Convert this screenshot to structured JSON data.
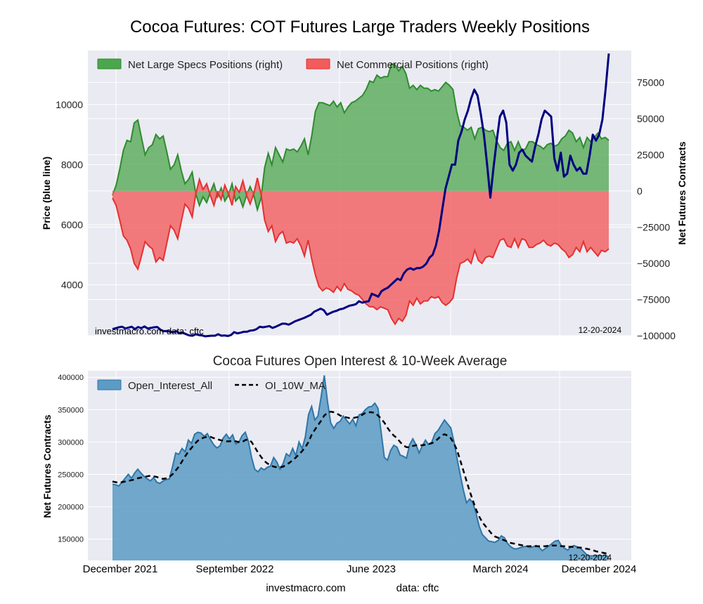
{
  "figure": {
    "title": "Cocoa Futures: COT Futures Large Traders Weekly Positions",
    "footer_site": "investmacro.com",
    "footer_data": "data: cftc"
  },
  "colors": {
    "plot_bg": "#eaeaf2",
    "grid": "#ffffff",
    "price_line": "#000080",
    "specs_fill": "#4ca64c",
    "specs_line": "#2e8b2e",
    "comm_fill": "#f25c5c",
    "comm_line": "#e53030",
    "oi_fill": "#5b9bc4",
    "oi_line": "#2e76a8",
    "ma_line": "#000000"
  },
  "chart_data": [
    {
      "type": "line",
      "id": "positions",
      "title": "",
      "ylabel": "Price (blue line)",
      "y2label": "Net Futures Contracts",
      "ylim": [
        2300,
        11800
      ],
      "y2lim": [
        -100000,
        97000
      ],
      "yticks": [
        4000,
        6000,
        8000,
        10000
      ],
      "y2ticks": [
        -100000,
        -75000,
        -50000,
        -25000,
        0,
        25000,
        50000,
        75000
      ],
      "ytick_labels": [
        "4000",
        "6000",
        "8000",
        "10000"
      ],
      "y2tick_labels": [
        "−100000",
        "−75000",
        "−50000",
        "−25000",
        "0",
        "25000",
        "50000",
        "75000"
      ],
      "legend": [
        "Net Large Specs Positions (right)",
        "Net Commercial Positions (right)"
      ],
      "legend_position": "top-left",
      "source_left": "investmacro.com     data: cftc",
      "date_label": "12-20-2024",
      "start_date": "2021-12-03",
      "series": [
        {
          "name": "Net Large Specs Positions (right)",
          "axis": "right",
          "style": "area",
          "values": [
            -3000,
            4000,
            15000,
            28000,
            35000,
            34000,
            47000,
            49000,
            37000,
            25000,
            30000,
            32000,
            39000,
            36000,
            38000,
            27000,
            15000,
            18000,
            25000,
            14000,
            5000,
            8000,
            13000,
            -2000,
            -10000,
            -4000,
            -8000,
            -1000,
            5000,
            -4000,
            2000,
            -7000,
            -3000,
            5000,
            -7000,
            -4000,
            -11000,
            -3000,
            3000,
            -3000,
            -13000,
            -5000,
            16000,
            26000,
            18000,
            30000,
            25000,
            20000,
            29000,
            28000,
            29000,
            27000,
            31000,
            36000,
            25000,
            38000,
            55000,
            61000,
            61000,
            60000,
            59000,
            62000,
            58000,
            61000,
            54000,
            58000,
            61000,
            62000,
            64000,
            66000,
            70000,
            76000,
            75000,
            80000,
            78000,
            79000,
            79000,
            88000,
            87000,
            83000,
            86000,
            81000,
            71000,
            73000,
            70000,
            73000,
            71000,
            71000,
            69000,
            70000,
            69000,
            72000,
            75000,
            73000,
            70000,
            55000,
            45000,
            44000,
            42000,
            44000,
            36000,
            43000,
            44000,
            42000,
            41000,
            42000,
            35000,
            30000,
            28000,
            33000,
            34000,
            28000,
            34000,
            28000,
            29000,
            34000,
            34000,
            32000,
            31000,
            29000,
            32000,
            33000,
            31000,
            32000,
            36000,
            38000,
            42000,
            40000,
            34000,
            37000,
            30000,
            37000,
            34000,
            37000,
            40000,
            36000,
            37000,
            35000
          ]
        },
        {
          "name": "Net Commercial Positions (right)",
          "axis": "right",
          "style": "area",
          "values": [
            -5000,
            -10000,
            -20000,
            -31000,
            -34000,
            -40000,
            -50000,
            -54000,
            -45000,
            -35000,
            -38000,
            -40000,
            -49000,
            -46000,
            -48000,
            -36000,
            -24000,
            -27000,
            -33000,
            -21000,
            -9000,
            -12000,
            -18000,
            -2000,
            8000,
            1000,
            5000,
            -3000,
            -10000,
            -1000,
            -6000,
            4000,
            -2000,
            -10000,
            3000,
            -1000,
            7000,
            -3000,
            -9000,
            -2000,
            9000,
            -2000,
            -20000,
            -28000,
            -24000,
            -35000,
            -30000,
            -28000,
            -36000,
            -35000,
            -36000,
            -33000,
            -38000,
            -45000,
            -34000,
            -47000,
            -58000,
            -66000,
            -69000,
            -67000,
            -68000,
            -70000,
            -66000,
            -69000,
            -64000,
            -68000,
            -69000,
            -71000,
            -72000,
            -75000,
            -78000,
            -80000,
            -80000,
            -82000,
            -80000,
            -81000,
            -82000,
            -88000,
            -92000,
            -88000,
            -90000,
            -86000,
            -76000,
            -79000,
            -74000,
            -78000,
            -76000,
            -76000,
            -73000,
            -74000,
            -73000,
            -77000,
            -79000,
            -77000,
            -74000,
            -60000,
            -50000,
            -49000,
            -47000,
            -50000,
            -41000,
            -48000,
            -50000,
            -46000,
            -45000,
            -46000,
            -40000,
            -34000,
            -33000,
            -38000,
            -39000,
            -33000,
            -39000,
            -33000,
            -34000,
            -39000,
            -39000,
            -37000,
            -36000,
            -34000,
            -37000,
            -38000,
            -36000,
            -37000,
            -40000,
            -42000,
            -46000,
            -44000,
            -39000,
            -42000,
            -35000,
            -42000,
            -39000,
            -42000,
            -45000,
            -41000,
            -42000,
            -40000
          ]
        },
        {
          "name": "",
          "axis": "left",
          "style": "line",
          "values": [
            2520,
            2550,
            2580,
            2600,
            2540,
            2570,
            2600,
            2520,
            2590,
            2550,
            2610,
            2540,
            2560,
            2580,
            2590,
            2500,
            2450,
            2460,
            2430,
            2420,
            2450,
            2380,
            2400,
            2350,
            2310,
            2300,
            2350,
            2320,
            2310,
            2280,
            2290,
            2300,
            2300,
            2350,
            2300,
            2310,
            2290,
            2320,
            2420,
            2380,
            2400,
            2430,
            2430,
            2470,
            2480,
            2520,
            2600,
            2580,
            2600,
            2620,
            2560,
            2600,
            2650,
            2700,
            2700,
            2670,
            2720,
            2780,
            2820,
            2860,
            2900,
            2950,
            3000,
            3100,
            3150,
            3200,
            3150,
            3000,
            3050,
            3100,
            3130,
            3180,
            3200,
            3250,
            3300,
            3320,
            3350,
            3450,
            3400,
            3430,
            3450,
            3700,
            3650,
            3600,
            3780,
            3850,
            3900,
            4000,
            4100,
            4200,
            4150,
            4380,
            4500,
            4550,
            4500,
            4550,
            4550,
            4600,
            4700,
            4900,
            5000,
            5300,
            5800,
            6500,
            7200,
            7600,
            8000,
            8000,
            8800,
            9100,
            9500,
            9800,
            10200,
            10500,
            10300,
            9700,
            9000,
            8000,
            6900,
            7900,
            8800,
            9600,
            9800,
            9400,
            8000,
            7800,
            8000,
            8400,
            8500,
            8300,
            8200,
            8100,
            8600,
            9000,
            9500,
            9800,
            9700,
            9600,
            8200,
            7800,
            8400,
            7600,
            7700,
            8300,
            8000,
            7800,
            7900,
            7700,
            7700,
            8300,
            9000,
            8800,
            9000,
            9500,
            10500,
            11700
          ]
        }
      ]
    },
    {
      "type": "area",
      "id": "open_interest",
      "title": "Cocoa Futures Open Interest & 10-Week Average",
      "ylabel": "Net Futures Contracts",
      "ylim": [
        117000,
        410000
      ],
      "yticks": [
        150000,
        200000,
        250000,
        300000,
        350000,
        400000
      ],
      "ytick_labels": [
        "150000",
        "200000",
        "250000",
        "300000",
        "350000",
        "400000"
      ],
      "legend": [
        "Open_Interest_All",
        "OI_10W_MA"
      ],
      "legend_position": "top-left",
      "date_label": "12-20-2024",
      "x_tick_labels": [
        "December 2021",
        "September 2022",
        "June 2023",
        "March 2024",
        "December 2024"
      ],
      "start_date": "2021-12-03",
      "series": [
        {
          "name": "Open_Interest_All",
          "style": "area",
          "values": [
            235000,
            234000,
            232000,
            238000,
            244000,
            250000,
            244000,
            252000,
            258000,
            252000,
            247000,
            243000,
            240000,
            245000,
            238000,
            236000,
            240000,
            242000,
            243000,
            262000,
            283000,
            281000,
            290000,
            285000,
            303000,
            298000,
            312000,
            315000,
            314000,
            309000,
            313000,
            304000,
            296000,
            291000,
            294000,
            306000,
            312000,
            305000,
            311000,
            297000,
            300000,
            310000,
            315000,
            301000,
            276000,
            258000,
            254000,
            260000,
            257000,
            261000,
            263000,
            276000,
            269000,
            258000,
            267000,
            282000,
            278000,
            290000,
            279000,
            300000,
            290000,
            308000,
            342000,
            355000,
            334000,
            340000,
            370000,
            403000,
            363000,
            330000,
            321000,
            329000,
            332000,
            340000,
            334000,
            328000,
            335000,
            325000,
            342000,
            344000,
            350000,
            354000,
            355000,
            360000,
            352000,
            315000,
            276000,
            272000,
            287000,
            295000,
            292000,
            280000,
            278000,
            275000,
            296000,
            305000,
            296000,
            283000,
            294000,
            303000,
            296000,
            300000,
            313000,
            318000,
            326000,
            334000,
            328000,
            322000,
            301000,
            274000,
            250000,
            226000,
            206000,
            212000,
            206000,
            190000,
            170000,
            157000,
            152000,
            147000,
            146000,
            145000,
            148000,
            155000,
            152000,
            143000,
            138000,
            135000,
            135000,
            137000,
            138000,
            139000,
            137000,
            138000,
            140000,
            137000,
            132000,
            136000,
            139000,
            143000,
            147000,
            148000,
            140000,
            136000,
            133000,
            138000,
            140000,
            138000,
            136000,
            131000,
            126000,
            124000,
            124000,
            124000,
            125000,
            124000,
            125000,
            122000
          ]
        },
        {
          "name": "OI_10W_MA",
          "style": "dashed-line",
          "values": [
            239000,
            238000,
            237000,
            238000,
            239000,
            240000,
            241000,
            242000,
            244000,
            245000,
            246000,
            247000,
            248000,
            247000,
            246000,
            244000,
            243000,
            244000,
            246000,
            250000,
            256000,
            262000,
            270000,
            278000,
            285000,
            291000,
            297000,
            302000,
            305000,
            307000,
            308000,
            308000,
            306000,
            305000,
            303000,
            302000,
            301000,
            301000,
            302000,
            301000,
            300000,
            300000,
            303000,
            304000,
            300000,
            292000,
            284000,
            277000,
            271000,
            267000,
            264000,
            262000,
            261000,
            261000,
            262000,
            265000,
            268000,
            272000,
            276000,
            281000,
            286000,
            292000,
            300000,
            311000,
            319000,
            326000,
            333000,
            341000,
            345000,
            347000,
            346000,
            344000,
            341000,
            339000,
            338000,
            337000,
            337000,
            338000,
            339000,
            342000,
            345000,
            346000,
            346000,
            345000,
            341000,
            336000,
            330000,
            322000,
            315000,
            310000,
            306000,
            300000,
            295000,
            292000,
            292000,
            294000,
            295000,
            295000,
            295000,
            296000,
            297000,
            298000,
            301000,
            305000,
            310000,
            312000,
            310000,
            306000,
            298000,
            287000,
            272000,
            256000,
            240000,
            224000,
            210000,
            196000,
            185000,
            176000,
            170000,
            164000,
            158000,
            154000,
            152000,
            150000,
            148000,
            146000,
            144000,
            143000,
            142000,
            141000,
            140000,
            139000,
            139000,
            139000,
            139000,
            139000,
            139000,
            139000,
            140000,
            140000,
            140000,
            140000,
            139000,
            139000,
            138000,
            138000,
            138000,
            137000,
            137000,
            136000,
            135000,
            134000,
            133000,
            131000,
            130000,
            129000,
            128000,
            127000
          ]
        }
      ]
    }
  ]
}
